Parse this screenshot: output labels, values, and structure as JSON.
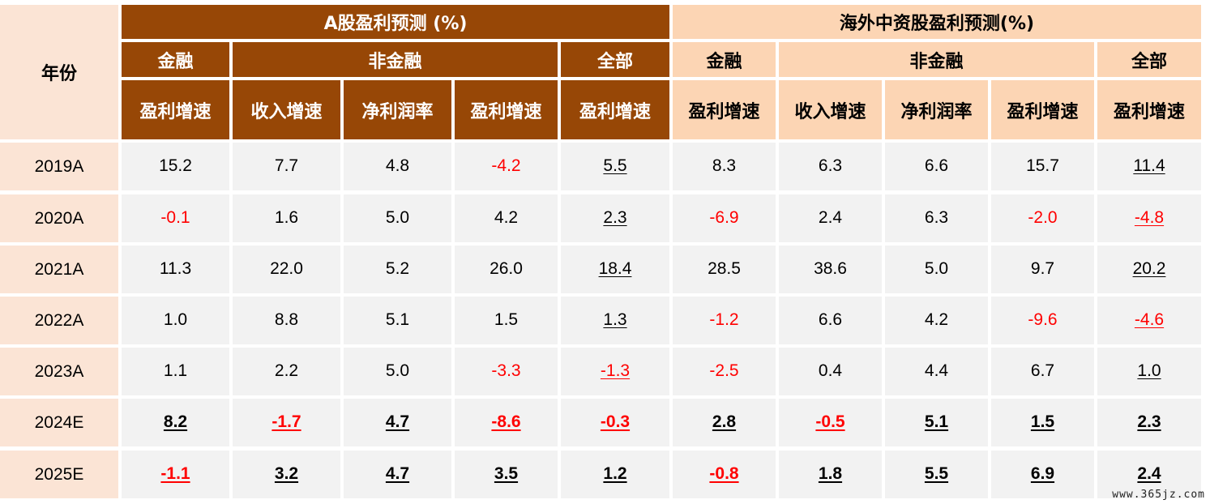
{
  "header": {
    "year_label": "年份",
    "a_group": "A股盈利预测 (%)",
    "overseas_group": "海外中资股盈利预测(%)",
    "sub_groups": {
      "financial": "金融",
      "non_financial": "非金融",
      "all": "全部"
    },
    "metrics": [
      "盈利增速",
      "收入增速",
      "净利润率",
      "盈利增速",
      "盈利增速",
      "盈利增速",
      "收入增速",
      "净利润率",
      "盈利增速",
      "盈利增速"
    ]
  },
  "rows": [
    {
      "year": "2019A",
      "values": [
        "15.2",
        "7.7",
        "4.8",
        "-4.2",
        "5.5",
        "8.3",
        "6.3",
        "6.6",
        "15.7",
        "11.4"
      ]
    },
    {
      "year": "2020A",
      "values": [
        "-0.1",
        "1.6",
        "5.0",
        "4.2",
        "2.3",
        "-6.9",
        "2.4",
        "6.3",
        "-2.0",
        "-4.8"
      ]
    },
    {
      "year": "2021A",
      "values": [
        "11.3",
        "22.0",
        "5.2",
        "26.0",
        "18.4",
        "28.5",
        "38.6",
        "5.0",
        "9.7",
        "20.2"
      ]
    },
    {
      "year": "2022A",
      "values": [
        "1.0",
        "8.8",
        "5.1",
        "1.5",
        "1.3",
        "-1.2",
        "6.6",
        "4.2",
        "-9.6",
        "-4.6"
      ]
    },
    {
      "year": "2023A",
      "values": [
        "1.1",
        "2.2",
        "5.0",
        "-3.3",
        "-1.3",
        "-2.5",
        "0.4",
        "4.4",
        "6.7",
        "1.0"
      ]
    },
    {
      "year": "2024E",
      "values": [
        "8.2",
        "-1.7",
        "4.7",
        "-8.6",
        "-0.3",
        "2.8",
        "-0.5",
        "5.1",
        "1.5",
        "2.3"
      ]
    },
    {
      "year": "2025E",
      "values": [
        "-1.1",
        "3.2",
        "4.7",
        "3.5",
        "1.2",
        "-0.8",
        "1.8",
        "5.5",
        "6.9",
        "2.4"
      ]
    }
  ],
  "watermark": "www.365jz.com",
  "colors": {
    "a_header": "#974706",
    "overseas_header": "#fcd5b4",
    "year_column": "#fbe4d5",
    "data_bg": "#f2f2f2",
    "negative": "#ff0000"
  }
}
